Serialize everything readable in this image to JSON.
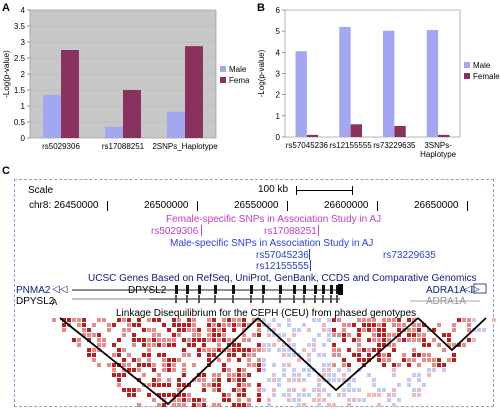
{
  "panels": {
    "a": "A",
    "b": "B",
    "c": "C"
  },
  "chart_data": [
    {
      "type": "bar",
      "categories": [
        "rs5029306",
        "rs17088251",
        "2SNPs_Haplotype"
      ],
      "series": [
        {
          "name": "Male",
          "values": [
            1.35,
            0.35,
            0.82
          ]
        },
        {
          "name": "Female",
          "values": [
            2.75,
            1.5,
            2.87
          ]
        }
      ],
      "ylabel": "-Log(p-value)",
      "xlabel": "",
      "title": "",
      "ylim": [
        0,
        4
      ],
      "yticks": [
        "0",
        "0.5",
        "1",
        "1.5",
        "2",
        "2.5",
        "3",
        "3.5",
        "4"
      ],
      "legend": "right",
      "background": "#c8c8c8",
      "colors": {
        "Male": "#a3a7f0",
        "Female": "#8b3160"
      }
    },
    {
      "type": "bar",
      "categories": [
        "rs57045236",
        "rs12155555",
        "rs73229635",
        "3SNPs-\nHaplotype"
      ],
      "series": [
        {
          "name": "Male",
          "values": [
            4.05,
            5.2,
            5.02,
            5.05
          ]
        },
        {
          "name": "Female",
          "values": [
            0.1,
            0.6,
            0.52,
            0.1
          ]
        }
      ],
      "ylabel": "-Log(p-value)",
      "xlabel": "",
      "title": "",
      "ylim": [
        0,
        6
      ],
      "yticks": [
        "0",
        "1",
        "2",
        "3",
        "4",
        "5",
        "6"
      ],
      "legend": "right",
      "background": "#ffffff",
      "colors": {
        "Male": "#a3a7f0",
        "Female": "#8b3160"
      }
    }
  ],
  "browser": {
    "scale_label": "Scale",
    "scale_value": "100 kb",
    "chrom": "chr8:",
    "positions": [
      "26450000",
      "26500000",
      "26550000",
      "26600000",
      "26650000"
    ],
    "female_track": "Female-specific SNPs in Association Study in AJ",
    "female_snps": [
      "rs5029306",
      "rs17088251"
    ],
    "male_track": "Male-specific SNPs in Association Study in AJ",
    "male_snps": [
      "rs57045236",
      "rs73229635",
      "rs12155555"
    ],
    "genes_track": "UCSC Genes Based on RefSeq, UniProt, GenBank, CCDS and Comparative Genomics",
    "genes": {
      "pnma2": "PNMA2",
      "dpysl2_top": "DPYSL2",
      "dpysl2_left": "DPYSL2",
      "dpysl2_suffix": "A",
      "adra1a_top": "ADRA1A",
      "adra1a_bottom": "ADRA1A"
    },
    "ld_track": "Linkage Disequilibrium for the CEPH (CEU) from phased genotypes",
    "colors": {
      "female": "#c040c0",
      "male": "#2a3fd0",
      "genes": "#0e1a7a",
      "gene_grey": "#9090a0",
      "frame": "#8f9fcf"
    }
  }
}
